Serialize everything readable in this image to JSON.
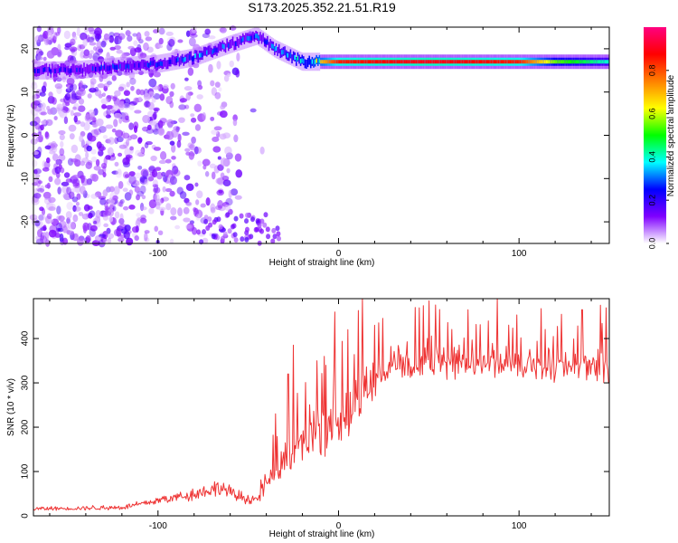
{
  "title": "S173.2025.352.21.51.R19",
  "colorbar": {
    "label": "Normalized spectral amplitude",
    "ticks": [
      "0.0",
      "0.2",
      "0.4",
      "0.6",
      "0.8"
    ],
    "colors": [
      "#ffffff",
      "#7f00ff",
      "#0000ff",
      "#00ffff",
      "#00ff00",
      "#ffff00",
      "#ff8000",
      "#ff0000",
      "#ff0080"
    ]
  },
  "chart_data": [
    {
      "type": "heatmap",
      "xlabel": "Height of straight line (km)",
      "ylabel": "Frequency (Hz)",
      "xlim": [
        -169,
        150
      ],
      "ylim": [
        -25,
        25
      ],
      "xticks": [
        "-100",
        "0",
        "100"
      ],
      "yticks": [
        "-20",
        "-10",
        "0",
        "10",
        "20"
      ],
      "ridge": {
        "description": "dominant spectral line",
        "points": [
          {
            "x": -147,
            "y": 15,
            "amp": 0.25
          },
          {
            "x": -120,
            "y": 16,
            "amp": 0.3
          },
          {
            "x": -100,
            "y": 16.5,
            "amp": 0.3
          },
          {
            "x": -80,
            "y": 18,
            "amp": 0.35
          },
          {
            "x": -60,
            "y": 21,
            "amp": 0.3
          },
          {
            "x": -45,
            "y": 23,
            "amp": 0.3
          },
          {
            "x": -35,
            "y": 20,
            "amp": 0.35
          },
          {
            "x": -20,
            "y": 17,
            "amp": 0.5
          },
          {
            "x": 0,
            "y": 17,
            "amp": 0.85
          },
          {
            "x": 50,
            "y": 17,
            "amp": 0.9
          },
          {
            "x": 100,
            "y": 17,
            "amp": 0.85
          },
          {
            "x": 120,
            "y": 17,
            "amp": 0.55
          },
          {
            "x": 148,
            "y": 17,
            "amp": 0.4
          }
        ]
      }
    },
    {
      "type": "line",
      "xlabel": "Height of straight line (km)",
      "ylabel": "SNR (10 * v/v)",
      "xlim": [
        -169,
        150
      ],
      "ylim": [
        0,
        490
      ],
      "xticks": [
        "-100",
        "0",
        "100"
      ],
      "yticks": [
        "0",
        "100",
        "200",
        "300",
        "400"
      ],
      "series": [
        {
          "color": "#ee3333",
          "baseline": [
            {
              "x": -169,
              "y": 15
            },
            {
              "x": -120,
              "y": 18
            },
            {
              "x": -90,
              "y": 40
            },
            {
              "x": -65,
              "y": 60
            },
            {
              "x": -55,
              "y": 40
            },
            {
              "x": -45,
              "y": 35
            },
            {
              "x": -35,
              "y": 90
            },
            {
              "x": -25,
              "y": 130
            },
            {
              "x": -10,
              "y": 170
            },
            {
              "x": 0,
              "y": 200
            },
            {
              "x": 10,
              "y": 250
            },
            {
              "x": 20,
              "y": 300
            },
            {
              "x": 30,
              "y": 330
            },
            {
              "x": 50,
              "y": 340
            },
            {
              "x": 100,
              "y": 335
            },
            {
              "x": 150,
              "y": 330
            }
          ],
          "peaks": [
            {
              "x": -35,
              "y": 230
            },
            {
              "x": -28,
              "y": 320
            },
            {
              "x": -25,
              "y": 385
            },
            {
              "x": -12,
              "y": 350
            },
            {
              "x": -8,
              "y": 360
            },
            {
              "x": -2,
              "y": 460
            },
            {
              "x": 5,
              "y": 420
            },
            {
              "x": 20,
              "y": 430
            },
            {
              "x": 50,
              "y": 485
            },
            {
              "x": 88,
              "y": 490
            },
            {
              "x": 135,
              "y": 465
            },
            {
              "x": 145,
              "y": 475
            }
          ]
        }
      ]
    }
  ]
}
